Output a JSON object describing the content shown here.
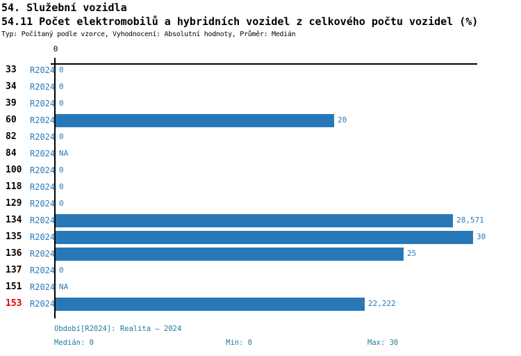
{
  "title": "54. Služební vozidla",
  "subtitle": "54.11 Počet elektromobilů a hybridních vozidel z celkového počtu vozidel (%)",
  "meta": "Typ: Počítaný podle vzorce, Vyhodnocení: Absolutní hodnoty, Průměr: Medián",
  "colors": {
    "bar": "#2878b8",
    "blue": "#2878b8",
    "footer": "#1e7a9b",
    "highlight": "#e00000",
    "axis": "#000000"
  },
  "chart_data": {
    "type": "bar",
    "orientation": "horizontal",
    "series_label": "R2024",
    "axis_tick_label": "0",
    "axis_min": 0,
    "max_value": 30,
    "grid": "off",
    "categories": [
      "33",
      "34",
      "39",
      "60",
      "82",
      "84",
      "100",
      "118",
      "129",
      "134",
      "135",
      "136",
      "137",
      "151",
      "153"
    ],
    "values": [
      0,
      0,
      0,
      20,
      0,
      null,
      0,
      0,
      0,
      28.571,
      30,
      25,
      0,
      null,
      22.222
    ],
    "value_labels": [
      "0",
      "0",
      "0",
      "20",
      "0",
      "NA",
      "0",
      "0",
      "0",
      "28,571",
      "30",
      "25",
      "0",
      "NA",
      "22,222"
    ],
    "highlighted_category": "153",
    "title": "54.11 Počet elektromobilů a hybridních vozidel z celkového počtu vozidel (%)",
    "xlabel": "",
    "ylabel": ""
  },
  "footer": {
    "period": "Období[R2024]: Realita – 2024",
    "median": "Medián: 0",
    "min": "Min: 0",
    "max": "Max: 30"
  }
}
